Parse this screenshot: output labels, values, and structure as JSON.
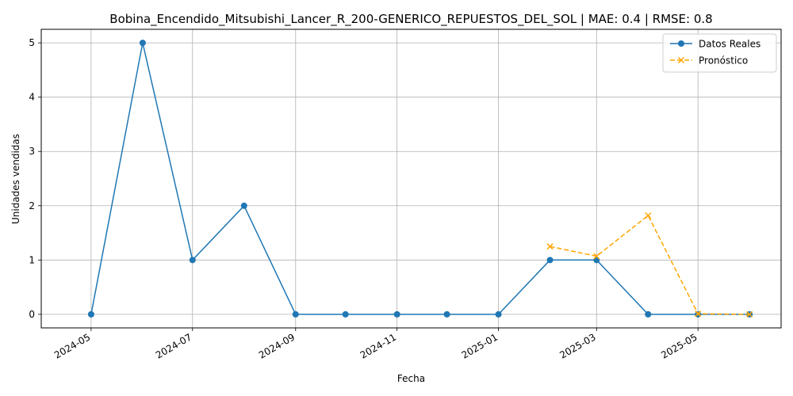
{
  "chart_data": {
    "type": "line",
    "title": "Bobina_Encendido_Mitsubishi_Lancer_R_200-GENERICO_REPUESTOS_DEL_SOL | MAE: 0.4 | RMSE: 0.8",
    "xlabel": "Fecha",
    "ylabel": "Unidades vendidas",
    "x_ticks": [
      "2024-05",
      "2024-07",
      "2024-09",
      "2024-11",
      "2025-01",
      "2025-03",
      "2025-05"
    ],
    "y_ticks": [
      0,
      1,
      2,
      3,
      4,
      5
    ],
    "ylim": [
      -0.25,
      5.25
    ],
    "xlim": [
      "2024-04-01",
      "2025-06-20"
    ],
    "grid": true,
    "legend_position": "top-right",
    "series": [
      {
        "name": "Datos Reales",
        "color": "#1f77b4",
        "style": "solid",
        "marker": "circle",
        "points": [
          {
            "x": "2024-05-01",
            "y": 0
          },
          {
            "x": "2024-06-01",
            "y": 5
          },
          {
            "x": "2024-07-01",
            "y": 1
          },
          {
            "x": "2024-08-01",
            "y": 2
          },
          {
            "x": "2024-09-01",
            "y": 0
          },
          {
            "x": "2024-10-01",
            "y": 0
          },
          {
            "x": "2024-11-01",
            "y": 0
          },
          {
            "x": "2024-12-01",
            "y": 0
          },
          {
            "x": "2025-01-01",
            "y": 0
          },
          {
            "x": "2025-02-01",
            "y": 1
          },
          {
            "x": "2025-03-01",
            "y": 1
          },
          {
            "x": "2025-04-01",
            "y": 0
          },
          {
            "x": "2025-05-01",
            "y": 0
          },
          {
            "x": "2025-06-01",
            "y": 0
          }
        ]
      },
      {
        "name": "Pronóstico",
        "color": "#ffa500",
        "style": "dashed",
        "marker": "x",
        "points": [
          {
            "x": "2025-02-01",
            "y": 1.25
          },
          {
            "x": "2025-03-01",
            "y": 1.07
          },
          {
            "x": "2025-04-01",
            "y": 1.82
          },
          {
            "x": "2025-05-01",
            "y": 0.01
          },
          {
            "x": "2025-06-01",
            "y": 0.0
          }
        ]
      }
    ]
  }
}
